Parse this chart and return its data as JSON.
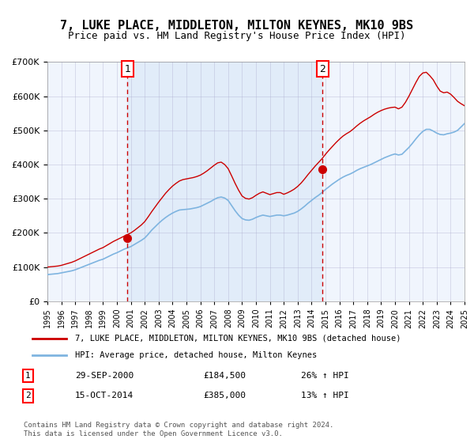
{
  "title": "7, LUKE PLACE, MIDDLETON, MILTON KEYNES, MK10 9BS",
  "subtitle": "Price paid vs. HM Land Registry's House Price Index (HPI)",
  "legend_line1": "7, LUKE PLACE, MIDDLETON, MILTON KEYNES, MK10 9BS (detached house)",
  "legend_line2": "HPI: Average price, detached house, Milton Keynes",
  "annotation1": {
    "label": "1",
    "date": "2000-09-29",
    "price": 184500,
    "pct": "26%",
    "dir": "↑"
  },
  "annotation2": {
    "label": "2",
    "date": "2014-10-15",
    "price": 385000,
    "pct": "13%",
    "dir": "↑"
  },
  "footnote1": "Contains HM Land Registry data © Crown copyright and database right 2024.",
  "footnote2": "This data is licensed under the Open Government Licence v3.0.",
  "bg_color": "#dce9f8",
  "plot_bg": "#f0f5fd",
  "red_line_color": "#cc0000",
  "blue_line_color": "#7eb4e0",
  "grid_color": "#aaaacc",
  "dashed_color": "#cc0000",
  "ylim": [
    0,
    700000
  ],
  "yticks": [
    0,
    100000,
    200000,
    300000,
    400000,
    500000,
    600000,
    700000
  ],
  "ytick_labels": [
    "£0",
    "£100K",
    "£200K",
    "£300K",
    "£400K",
    "£500K",
    "£600K",
    "£700K"
  ],
  "x_start_year": 1995,
  "x_end_year": 2025,
  "hpi_years": [
    1995.0,
    1995.25,
    1995.5,
    1995.75,
    1996.0,
    1996.25,
    1996.5,
    1996.75,
    1997.0,
    1997.25,
    1997.5,
    1997.75,
    1998.0,
    1998.25,
    1998.5,
    1998.75,
    1999.0,
    1999.25,
    1999.5,
    1999.75,
    2000.0,
    2000.25,
    2000.5,
    2000.75,
    2001.0,
    2001.25,
    2001.5,
    2001.75,
    2002.0,
    2002.25,
    2002.5,
    2002.75,
    2003.0,
    2003.25,
    2003.5,
    2003.75,
    2004.0,
    2004.25,
    2004.5,
    2004.75,
    2005.0,
    2005.25,
    2005.5,
    2005.75,
    2006.0,
    2006.25,
    2006.5,
    2006.75,
    2007.0,
    2007.25,
    2007.5,
    2007.75,
    2008.0,
    2008.25,
    2008.5,
    2008.75,
    2009.0,
    2009.25,
    2009.5,
    2009.75,
    2010.0,
    2010.25,
    2010.5,
    2010.75,
    2011.0,
    2011.25,
    2011.5,
    2011.75,
    2012.0,
    2012.25,
    2012.5,
    2012.75,
    2013.0,
    2013.25,
    2013.5,
    2013.75,
    2014.0,
    2014.25,
    2014.5,
    2014.75,
    2015.0,
    2015.25,
    2015.5,
    2015.75,
    2016.0,
    2016.25,
    2016.5,
    2016.75,
    2017.0,
    2017.25,
    2017.5,
    2017.75,
    2018.0,
    2018.25,
    2018.5,
    2018.75,
    2019.0,
    2019.25,
    2019.5,
    2019.75,
    2020.0,
    2020.25,
    2020.5,
    2020.75,
    2021.0,
    2021.25,
    2021.5,
    2021.75,
    2022.0,
    2022.25,
    2022.5,
    2022.75,
    2023.0,
    2023.25,
    2023.5,
    2023.75,
    2024.0,
    2024.25,
    2024.5,
    2024.75,
    2025.0
  ],
  "hpi_values": [
    78000,
    79000,
    80000,
    81000,
    83000,
    85000,
    87000,
    89000,
    92000,
    96000,
    100000,
    104000,
    108000,
    112000,
    116000,
    120000,
    123000,
    128000,
    133000,
    138000,
    142000,
    147000,
    152000,
    156000,
    160000,
    166000,
    172000,
    178000,
    185000,
    196000,
    208000,
    218000,
    228000,
    237000,
    245000,
    252000,
    258000,
    263000,
    267000,
    268000,
    269000,
    270000,
    272000,
    274000,
    277000,
    282000,
    287000,
    292000,
    298000,
    303000,
    305000,
    302000,
    295000,
    280000,
    265000,
    252000,
    242000,
    238000,
    237000,
    240000,
    245000,
    249000,
    252000,
    250000,
    248000,
    250000,
    252000,
    252000,
    250000,
    252000,
    255000,
    258000,
    263000,
    270000,
    278000,
    287000,
    295000,
    303000,
    310000,
    318000,
    327000,
    335000,
    343000,
    350000,
    357000,
    363000,
    368000,
    372000,
    377000,
    383000,
    388000,
    392000,
    396000,
    400000,
    405000,
    410000,
    415000,
    420000,
    424000,
    428000,
    431000,
    428000,
    430000,
    440000,
    450000,
    462000,
    475000,
    487000,
    497000,
    503000,
    503000,
    498000,
    492000,
    488000,
    487000,
    490000,
    492000,
    495000,
    500000,
    510000,
    520000
  ],
  "red_years": [
    1995.0,
    1995.25,
    1995.5,
    1995.75,
    1996.0,
    1996.25,
    1996.5,
    1996.75,
    1997.0,
    1997.25,
    1997.5,
    1997.75,
    1998.0,
    1998.25,
    1998.5,
    1998.75,
    1999.0,
    1999.25,
    1999.5,
    1999.75,
    2000.0,
    2000.25,
    2000.5,
    2000.75,
    2001.0,
    2001.25,
    2001.5,
    2001.75,
    2002.0,
    2002.25,
    2002.5,
    2002.75,
    2003.0,
    2003.25,
    2003.5,
    2003.75,
    2004.0,
    2004.25,
    2004.5,
    2004.75,
    2005.0,
    2005.25,
    2005.5,
    2005.75,
    2006.0,
    2006.25,
    2006.5,
    2006.75,
    2007.0,
    2007.25,
    2007.5,
    2007.75,
    2008.0,
    2008.25,
    2008.5,
    2008.75,
    2009.0,
    2009.25,
    2009.5,
    2009.75,
    2010.0,
    2010.25,
    2010.5,
    2010.75,
    2011.0,
    2011.25,
    2011.5,
    2011.75,
    2012.0,
    2012.25,
    2012.5,
    2012.75,
    2013.0,
    2013.25,
    2013.5,
    2013.75,
    2014.0,
    2014.25,
    2014.5,
    2014.75,
    2015.0,
    2015.25,
    2015.5,
    2015.75,
    2016.0,
    2016.25,
    2016.5,
    2016.75,
    2017.0,
    2017.25,
    2017.5,
    2017.75,
    2018.0,
    2018.25,
    2018.5,
    2018.75,
    2019.0,
    2019.25,
    2019.5,
    2019.75,
    2020.0,
    2020.25,
    2020.5,
    2020.75,
    2021.0,
    2021.25,
    2021.5,
    2021.75,
    2022.0,
    2022.25,
    2022.5,
    2022.75,
    2023.0,
    2023.25,
    2023.5,
    2023.75,
    2024.0,
    2024.25,
    2024.5,
    2024.75,
    2025.0
  ],
  "red_values": [
    100000,
    101000,
    102000,
    103000,
    105000,
    108000,
    111000,
    114000,
    118000,
    123000,
    128000,
    133000,
    138000,
    143000,
    148000,
    153000,
    157000,
    163000,
    169000,
    175000,
    180000,
    185000,
    190000,
    195000,
    200000,
    207000,
    215000,
    223000,
    233000,
    247000,
    262000,
    276000,
    290000,
    303000,
    316000,
    327000,
    337000,
    345000,
    352000,
    356000,
    358000,
    360000,
    362000,
    365000,
    369000,
    375000,
    382000,
    390000,
    398000,
    405000,
    407000,
    400000,
    388000,
    367000,
    345000,
    325000,
    308000,
    301000,
    299000,
    303000,
    310000,
    316000,
    320000,
    316000,
    312000,
    315000,
    318000,
    318000,
    313000,
    317000,
    322000,
    328000,
    336000,
    346000,
    358000,
    371000,
    383000,
    395000,
    406000,
    417000,
    430000,
    442000,
    453000,
    464000,
    474000,
    483000,
    490000,
    496000,
    504000,
    513000,
    521000,
    528000,
    534000,
    540000,
    547000,
    553000,
    558000,
    562000,
    565000,
    567000,
    568000,
    563000,
    568000,
    582000,
    600000,
    620000,
    640000,
    658000,
    668000,
    670000,
    660000,
    648000,
    630000,
    615000,
    610000,
    612000,
    606000,
    596000,
    585000,
    578000,
    572000
  ]
}
